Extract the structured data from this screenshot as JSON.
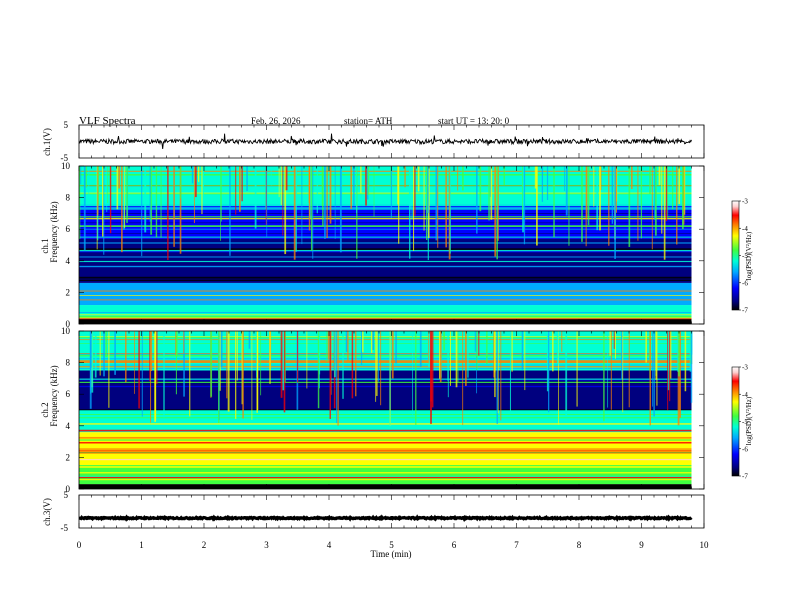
{
  "header": {
    "title": "VLF  Spectra",
    "date": "Feb. 26, 2026",
    "station": "station= ATH",
    "start": "start  UT  =   13: 20: 0"
  },
  "chart_data": [
    {
      "type": "line",
      "name": "ch1-waveform",
      "ylabel": "ch.1(V)",
      "ylim": [
        -5,
        5
      ],
      "yticks": [
        "5",
        "-5"
      ],
      "xlim": [
        0,
        10
      ],
      "data_extent_min": 9.8,
      "baseline": 0,
      "noise_amplitude": 0.7
    },
    {
      "type": "heatmap",
      "name": "ch1-spectrogram",
      "ylabel": "Frequency  (kHz)",
      "ylabel2": "ch.1",
      "ylim": [
        0,
        10
      ],
      "yticks": [
        "0",
        "2",
        "4",
        "6",
        "8",
        "10"
      ],
      "xlim": [
        0,
        10
      ],
      "colorbar": {
        "label": "log(PSD)(V²/Hz)",
        "ticks": [
          "-3",
          "-4",
          "-5",
          "-6",
          "-7"
        ],
        "range": [
          -7,
          -3
        ]
      },
      "bands": [
        {
          "f": [
            0.0,
            0.3
          ],
          "level": -7
        },
        {
          "f": [
            0.3,
            1.2
          ],
          "level": -5.4
        },
        {
          "f": [
            1.2,
            2.6
          ],
          "level": -5.8
        },
        {
          "f": [
            2.6,
            5.4
          ],
          "level": -6.7
        },
        {
          "f": [
            5.4,
            7.5
          ],
          "level": -6.2
        },
        {
          "f": [
            7.5,
            10
          ],
          "level": -5.3
        }
      ]
    },
    {
      "type": "heatmap",
      "name": "ch2-spectrogram",
      "ylabel": "Frequency  (kHz)",
      "ylabel2": "ch.2",
      "ylim": [
        0,
        10
      ],
      "yticks": [
        "0",
        "2",
        "4",
        "6",
        "8",
        "10"
      ],
      "xlim": [
        0,
        10
      ],
      "colorbar": {
        "label": "log(PSD)(V²/Hz)",
        "ticks": [
          "-3",
          "-4",
          "-5",
          "-6",
          "-7"
        ],
        "range": [
          -7,
          -3
        ]
      },
      "bands": [
        {
          "f": [
            0.0,
            0.3
          ],
          "level": -7
        },
        {
          "f": [
            0.3,
            1.5
          ],
          "level": -4.9
        },
        {
          "f": [
            1.5,
            3.6
          ],
          "level": -4.7
        },
        {
          "f": [
            3.6,
            5.0
          ],
          "level": -5.4
        },
        {
          "f": [
            5.0,
            7.5
          ],
          "level": -6.6
        },
        {
          "f": [
            7.5,
            10
          ],
          "level": -5.5
        }
      ]
    },
    {
      "type": "line",
      "name": "ch3-waveform",
      "ylabel": "ch.3(V)",
      "ylim": [
        -5,
        5
      ],
      "yticks": [
        "5",
        "-5"
      ],
      "xlim": [
        0,
        10
      ],
      "data_extent_min": 9.8,
      "baseline": -2,
      "noise_amplitude": 0.2
    }
  ],
  "xaxis": {
    "label": "Time  (min)",
    "ticks": [
      "0",
      "1",
      "2",
      "3",
      "4",
      "5",
      "6",
      "7",
      "8",
      "9",
      "10"
    ]
  },
  "colors": {
    "colormap": [
      "#000000",
      "#00007f",
      "#0000ff",
      "#00aaff",
      "#00ffd5",
      "#40ff40",
      "#ffff00",
      "#ff8000",
      "#ff0000",
      "#ffd0d0",
      "#ffffff"
    ]
  }
}
